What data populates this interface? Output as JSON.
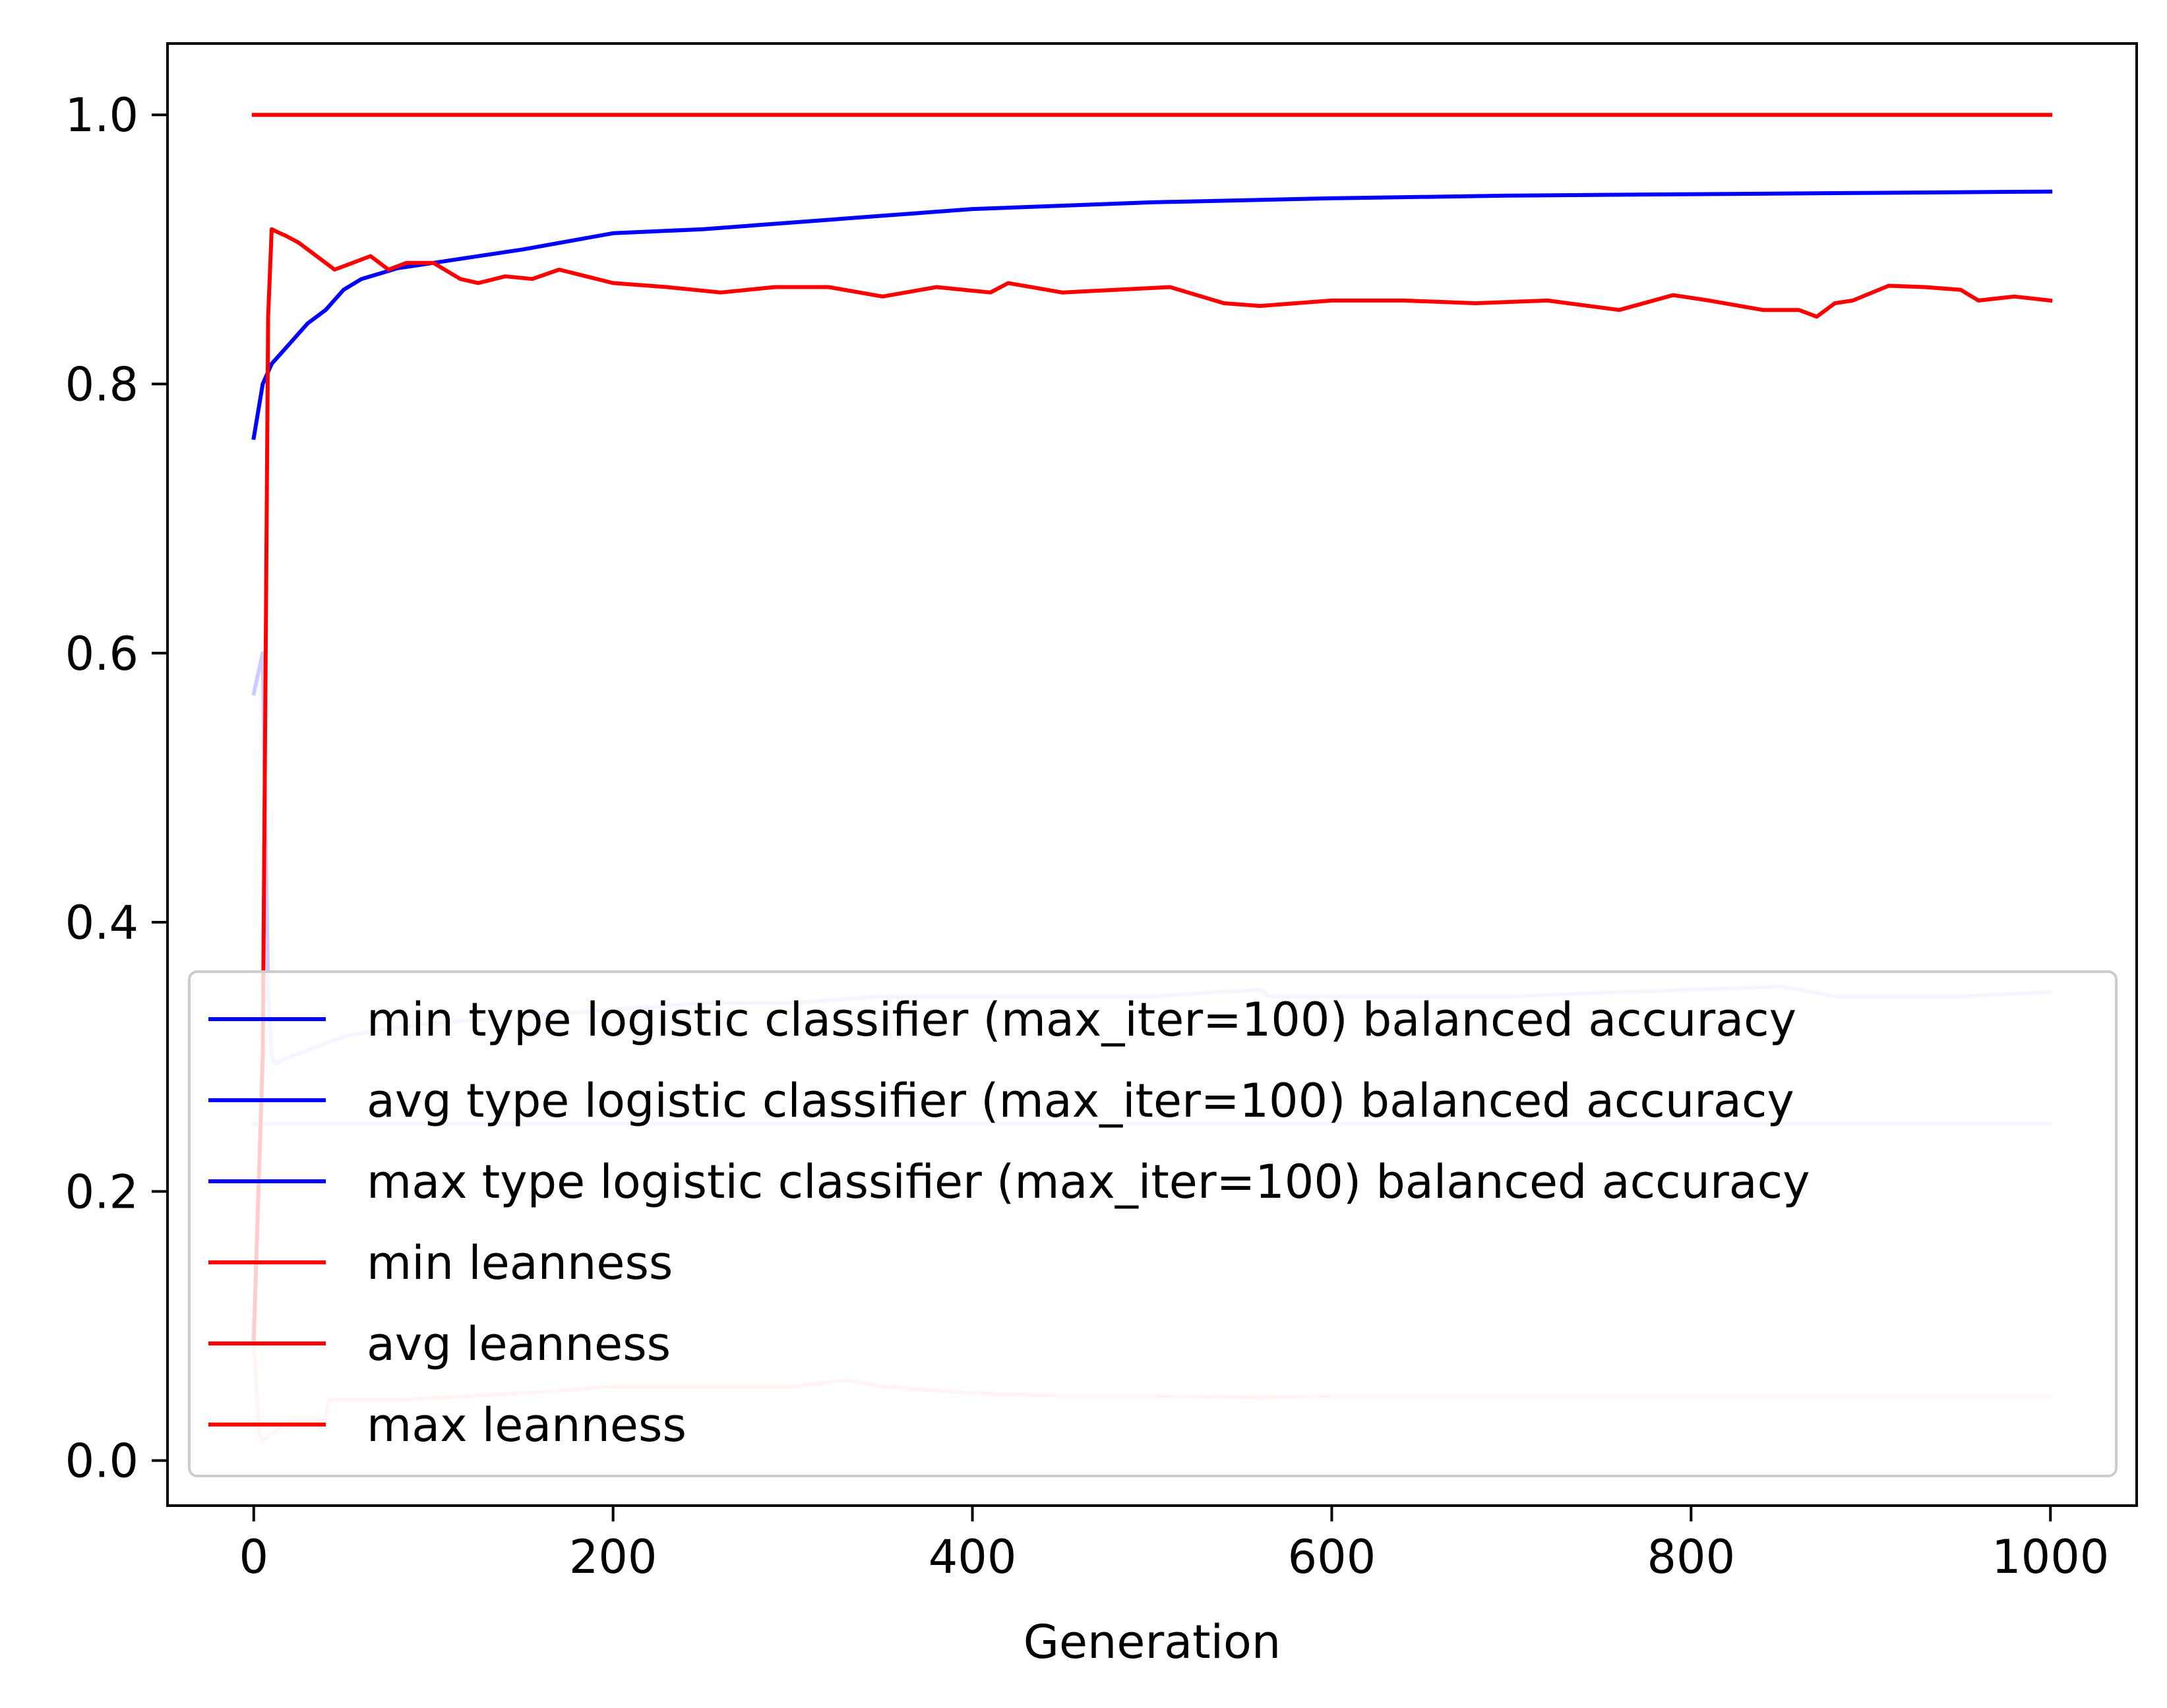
{
  "chart_data": {
    "type": "line",
    "title": "",
    "xlabel": "Generation",
    "ylabel": "",
    "xlim": [
      -48,
      1048
    ],
    "ylim": [
      -0.0335,
      1.053
    ],
    "xticks": [
      0,
      200,
      400,
      600,
      800,
      1000
    ],
    "yticks": [
      0.0,
      0.2,
      0.4,
      0.6,
      0.8,
      1.0
    ],
    "xtick_labels": [
      "0",
      "200",
      "400",
      "600",
      "800",
      "1000"
    ],
    "ytick_labels": [
      "0.0",
      "0.2",
      "0.4",
      "0.6",
      "0.8",
      "1.0"
    ],
    "grid": false,
    "legend_position": "lower-left",
    "series": [
      {
        "name": "min type logistic classifier (max_iter=100) balanced accuracy",
        "color": "#ccccff",
        "legend_color": "#0000ff",
        "x": [
          0,
          5,
          8,
          10,
          12,
          20,
          30,
          40,
          50,
          70,
          100,
          150,
          200,
          250,
          300,
          350,
          400,
          450,
          500,
          560,
          565,
          600,
          700,
          800,
          850,
          860,
          880,
          900,
          950,
          1000
        ],
        "y": [
          0.57,
          0.6,
          0.35,
          0.3,
          0.295,
          0.3,
          0.305,
          0.31,
          0.315,
          0.32,
          0.325,
          0.33,
          0.335,
          0.34,
          0.34,
          0.345,
          0.345,
          0.345,
          0.345,
          0.35,
          0.345,
          0.345,
          0.345,
          0.35,
          0.352,
          0.35,
          0.345,
          0.345,
          0.345,
          0.348
        ]
      },
      {
        "name": "avg type logistic classifier (max_iter=100) balanced accuracy",
        "color": "#0000ff",
        "legend_color": "#0000ff",
        "x": [
          0,
          5,
          10,
          20,
          30,
          40,
          50,
          60,
          70,
          80,
          100,
          150,
          200,
          250,
          300,
          350,
          400,
          500,
          600,
          700,
          800,
          900,
          1000
        ],
        "y": [
          0.76,
          0.8,
          0.815,
          0.83,
          0.845,
          0.855,
          0.87,
          0.878,
          0.882,
          0.886,
          0.89,
          0.9,
          0.912,
          0.915,
          0.92,
          0.925,
          0.93,
          0.935,
          0.938,
          0.94,
          0.941,
          0.942,
          0.943
        ]
      },
      {
        "name": "max type logistic classifier (max_iter=100) balanced accuracy",
        "color": "#ccccff",
        "legend_color": "#0000ff",
        "x": [
          0,
          1000
        ],
        "y": [
          0.25,
          0.25
        ]
      },
      {
        "name": "min leanness",
        "color": "#ffcccc",
        "legend_color": "#ff0000",
        "x": [
          0,
          3,
          5,
          10,
          20,
          40,
          42,
          80,
          150,
          200,
          300,
          330,
          350,
          400,
          450,
          500,
          560,
          600,
          700,
          800,
          850,
          900,
          1000
        ],
        "y": [
          0.09,
          0.02,
          0.015,
          0.02,
          0.03,
          0.03,
          0.045,
          0.045,
          0.05,
          0.055,
          0.055,
          0.06,
          0.055,
          0.05,
          0.048,
          0.048,
          0.047,
          0.048,
          0.048,
          0.048,
          0.048,
          0.048,
          0.048
        ]
      },
      {
        "name": "avg leanness",
        "color": "#ff0000",
        "legend_color": "#ff0000",
        "x": [
          0,
          5,
          8,
          10,
          13,
          18,
          25,
          35,
          45,
          55,
          65,
          75,
          85,
          100,
          115,
          125,
          140,
          155,
          170,
          185,
          200,
          230,
          260,
          290,
          320,
          350,
          380,
          410,
          420,
          450,
          480,
          510,
          540,
          560,
          580,
          600,
          640,
          680,
          720,
          760,
          790,
          810,
          840,
          860,
          870,
          880,
          890,
          910,
          930,
          950,
          960,
          980,
          1000
        ],
        "y": [
          0.09,
          0.3,
          0.85,
          0.915,
          0.913,
          0.91,
          0.905,
          0.895,
          0.885,
          0.89,
          0.895,
          0.885,
          0.89,
          0.89,
          0.878,
          0.875,
          0.88,
          0.878,
          0.885,
          0.88,
          0.875,
          0.872,
          0.868,
          0.872,
          0.872,
          0.865,
          0.872,
          0.868,
          0.875,
          0.868,
          0.87,
          0.872,
          0.86,
          0.858,
          0.86,
          0.862,
          0.862,
          0.86,
          0.862,
          0.855,
          0.866,
          0.862,
          0.855,
          0.855,
          0.85,
          0.86,
          0.862,
          0.873,
          0.872,
          0.87,
          0.862,
          0.865,
          0.862
        ]
      },
      {
        "name": "max leanness",
        "color": "#ff0000",
        "legend_color": "#ff0000",
        "x": [
          0,
          1000
        ],
        "y": [
          1.0,
          1.0
        ]
      }
    ]
  }
}
